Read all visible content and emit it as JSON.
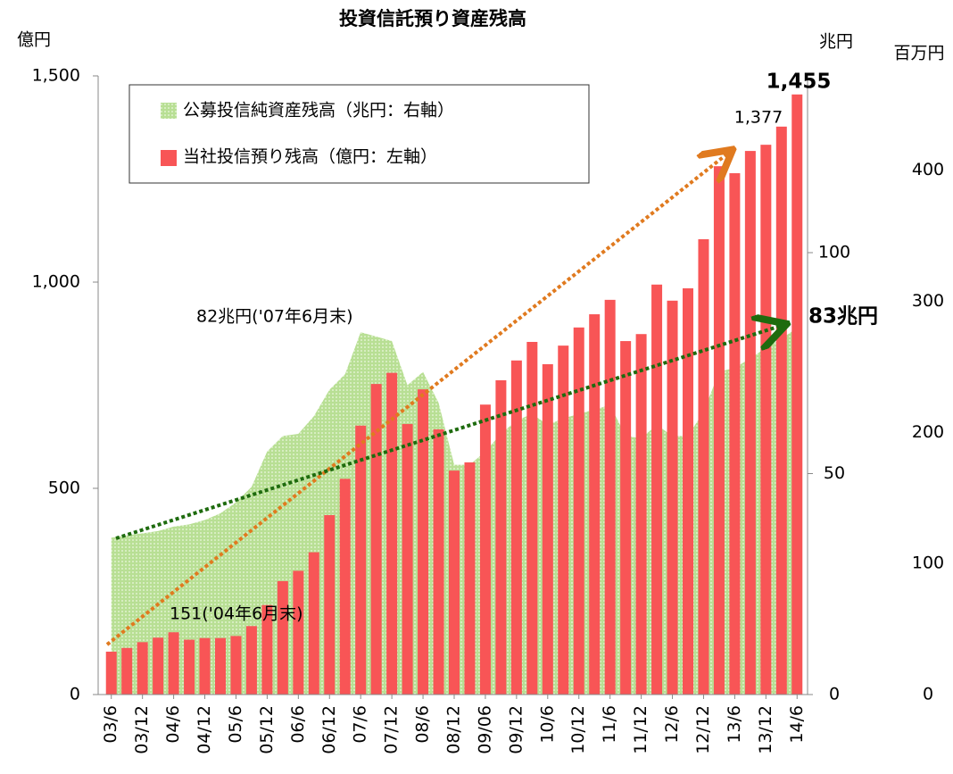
{
  "chart_data": {
    "type": "bar",
    "title": "投資信託預り資産残高",
    "y_label": "億円",
    "y2_label": "兆円",
    "y3_label": "百万円",
    "categories": [
      "03/6",
      null,
      "03/12",
      null,
      "04/6",
      null,
      "04/12",
      null,
      "05/6",
      null,
      "05/12",
      null,
      "06/6",
      null,
      "06/12",
      null,
      "07/6",
      null,
      "07/12",
      null,
      "08/6",
      null,
      "08/12",
      null,
      "09/06",
      null,
      "09/12",
      null,
      "10/6",
      null,
      "10/12",
      null,
      "11/6",
      null,
      "11/12",
      null,
      "12/6",
      null,
      "12/12",
      null,
      "13/6",
      null,
      "13/12",
      null,
      "14/6"
    ],
    "series": [
      {
        "name": "公募投信純資産残高（兆円：右軸）",
        "type": "area",
        "axis": "y2",
        "color": "#b8df94",
        "values": [
          35.5,
          36,
          36.5,
          37,
          38,
          38.5,
          39.5,
          41,
          43.5,
          47,
          55,
          58.5,
          59,
          63,
          69,
          72.5,
          82,
          81,
          80,
          70,
          73,
          66,
          52,
          52,
          55,
          59,
          62,
          63.5,
          61,
          62.5,
          63.5,
          64.5,
          65.5,
          58.5,
          58,
          61,
          58.5,
          58.5,
          64,
          73,
          74,
          76,
          78.5,
          80.5,
          83
        ]
      },
      {
        "name": "当社投信預り残高（億円：左軸）",
        "type": "bar",
        "color": "#f85556",
        "values": [
          104,
          113,
          127,
          138,
          151,
          133,
          137,
          137,
          142,
          166,
          217,
          275,
          300,
          345,
          435,
          523,
          652,
          753,
          780,
          656,
          740,
          643,
          543,
          563,
          703,
          762,
          810,
          855,
          801,
          846,
          890,
          922,
          957,
          857,
          874,
          994,
          955,
          985,
          1104,
          1281,
          1264,
          1318,
          1333,
          1377,
          1455
        ]
      }
    ],
    "ylim": [
      0,
      1500
    ],
    "yticks": [
      0,
      500,
      {
        "value": 1000,
        "label": "1,000"
      },
      {
        "value": 1500,
        "label": "1,500"
      }
    ],
    "y2lim": [
      0,
      140
    ],
    "y2ticks": [
      0,
      50,
      100
    ],
    "y3lim": [
      0,
      472
    ],
    "y3ticks": [
      0,
      100,
      200,
      300,
      400
    ],
    "annotations": [
      {
        "text": "151('04年6月末)",
        "color": "#000"
      },
      {
        "text": "82兆円('07年6月末)",
        "color": "#1e6b0e"
      },
      {
        "text": "1,377",
        "color": "#000"
      },
      {
        "text": "1,455",
        "color": "#1a78c2"
      },
      {
        "text": "83兆円",
        "color": "#1e6b0e"
      }
    ]
  }
}
